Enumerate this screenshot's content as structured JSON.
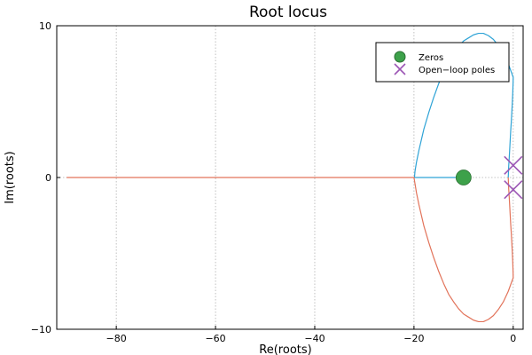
{
  "chart_data": {
    "type": "line",
    "title": "Root locus",
    "xlabel": "Re(roots)",
    "ylabel": "Im(roots)",
    "xlim": [
      -92,
      2
    ],
    "ylim": [
      -10,
      10
    ],
    "xticks": [
      -80,
      -60,
      -40,
      -20,
      0
    ],
    "yticks": [
      -10,
      0,
      10
    ],
    "xtick_labels": [
      "−80",
      "−60",
      "−40",
      "−20",
      "0"
    ],
    "ytick_labels": [
      "−10",
      "0",
      "10"
    ],
    "grid": true,
    "legend_position": "top-right",
    "colors": {
      "branch_upper": "#2ea3d6",
      "branch_lower": "#e2735a",
      "zeros": "#3da14a",
      "poles": "#9c56b5",
      "grid": "#b0b0b0"
    },
    "series": [
      {
        "color_key": "branch_upper",
        "x": [
          -1,
          -0.9,
          -0.8,
          -0.7,
          -0.6,
          -0.5,
          -0.4,
          -0.3,
          -0.2,
          -0.1,
          -0.05,
          -0.02,
          -0.01,
          0,
          -1,
          -2,
          -3,
          -4,
          -5,
          -6,
          -7,
          -8,
          -9,
          -10,
          -11,
          -12,
          -13,
          -14,
          -15,
          -16,
          -17,
          -18,
          -19,
          -19.5,
          -19.8,
          -19.9,
          -19.5,
          -18,
          -16,
          -14,
          -12,
          -10
        ],
        "y": [
          0,
          0.8,
          1.3,
          1.9,
          2.5,
          3.1,
          3.6,
          4.2,
          4.8,
          5.5,
          6.0,
          6.3,
          6.5,
          6.6,
          7.5,
          8.2,
          8.7,
          9.1,
          9.35,
          9.5,
          9.5,
          9.4,
          9.2,
          9.0,
          8.65,
          8.2,
          7.7,
          7.0,
          6.2,
          5.3,
          4.3,
          3.2,
          1.8,
          1.0,
          0.4,
          0,
          0,
          0,
          0,
          0,
          0,
          0
        ]
      },
      {
        "color_key": "branch_lower",
        "x": [
          -1,
          -0.9,
          -0.8,
          -0.7,
          -0.6,
          -0.5,
          -0.4,
          -0.3,
          -0.2,
          -0.1,
          -0.05,
          -0.02,
          -0.01,
          0,
          -1,
          -2,
          -3,
          -4,
          -5,
          -6,
          -7,
          -8,
          -9,
          -10,
          -11,
          -12,
          -13,
          -14,
          -15,
          -16,
          -17,
          -18,
          -19,
          -19.5,
          -19.8,
          -20,
          -25,
          -35,
          -50,
          -65,
          -80,
          -90
        ],
        "y": [
          0,
          -0.8,
          -1.3,
          -1.9,
          -2.5,
          -3.1,
          -3.6,
          -4.2,
          -4.8,
          -5.5,
          -6.0,
          -6.3,
          -6.5,
          -6.6,
          -7.5,
          -8.2,
          -8.7,
          -9.1,
          -9.35,
          -9.5,
          -9.5,
          -9.4,
          -9.2,
          -9.0,
          -8.65,
          -8.2,
          -7.7,
          -7.0,
          -6.2,
          -5.3,
          -4.3,
          -3.2,
          -1.8,
          -1.0,
          -0.4,
          0,
          0,
          0,
          0,
          0,
          0,
          0
        ]
      }
    ],
    "zeros": {
      "name": "Zeros",
      "points": [
        {
          "x": -10,
          "y": 0
        }
      ]
    },
    "poles": {
      "name": "Open−loop poles",
      "points": [
        {
          "x": 0,
          "y": 0.8
        },
        {
          "x": 0,
          "y": -0.8
        }
      ]
    }
  }
}
